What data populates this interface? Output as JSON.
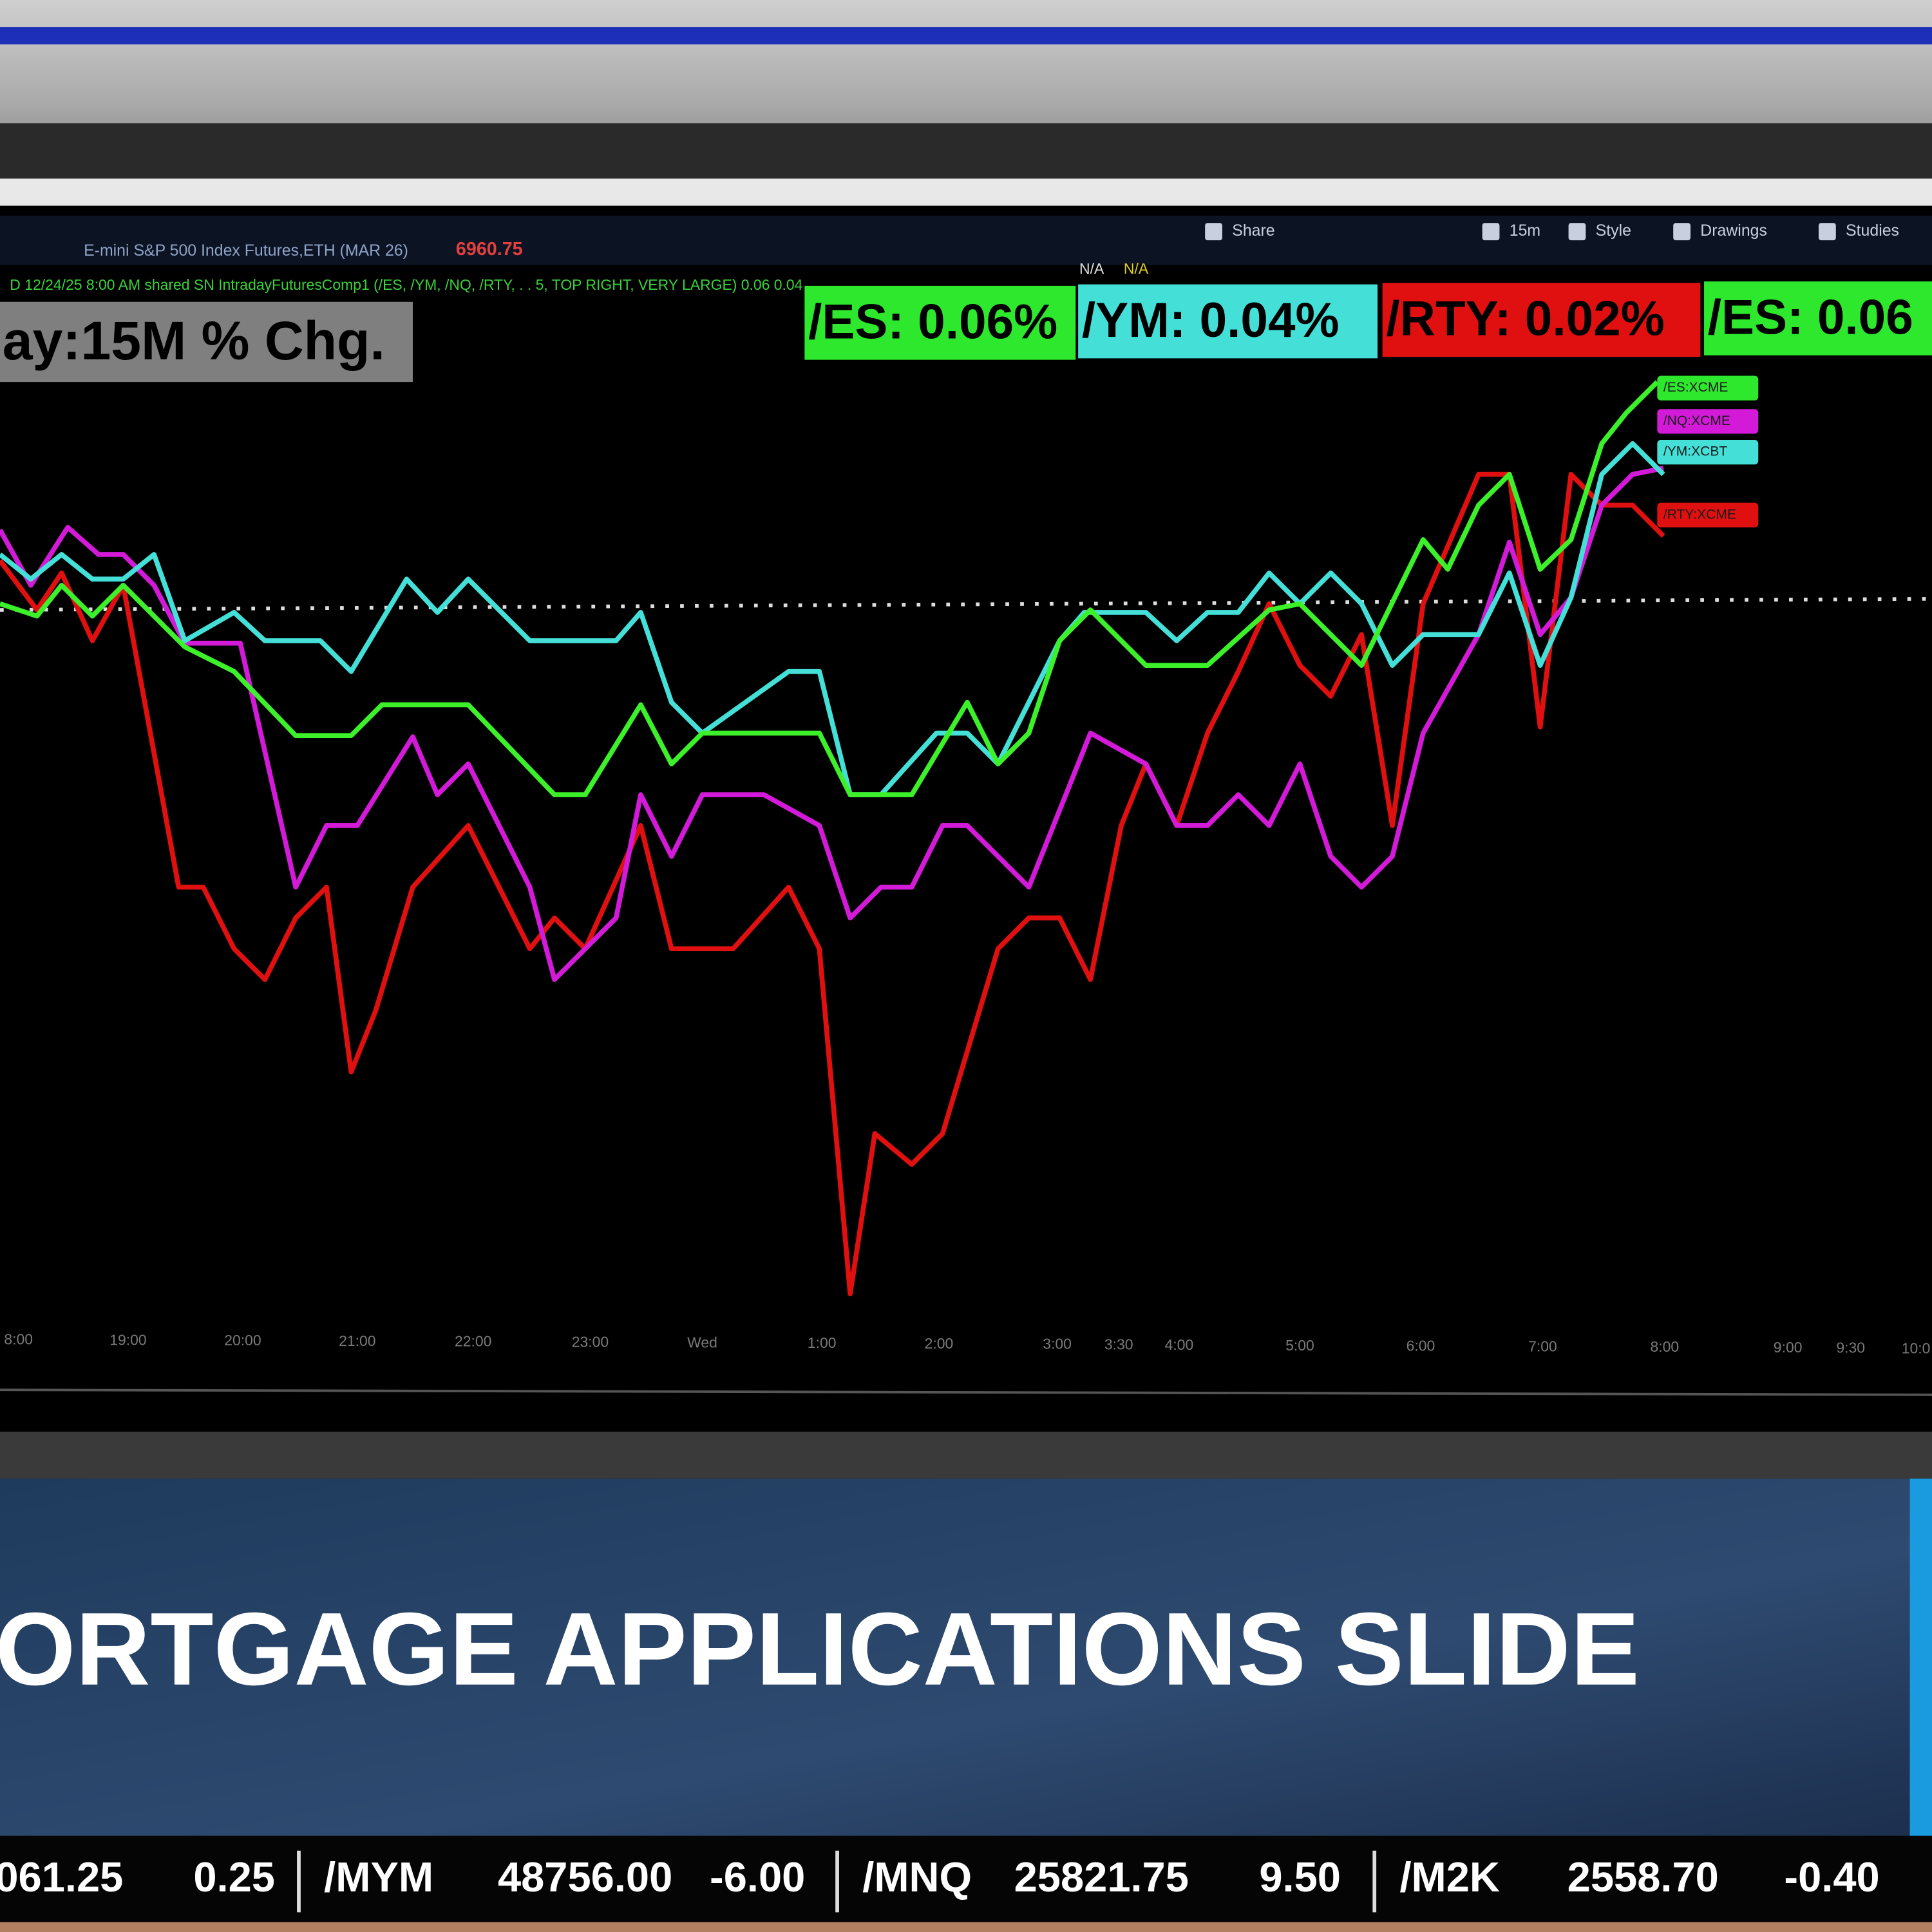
{
  "toolbar": {
    "symbol": "E-mini S&P 500 Index Futures,ETH (MAR 26)",
    "price": "6960.75",
    "buttons": [
      "Share",
      "15m",
      "Style",
      "Drawings",
      "Studies"
    ]
  },
  "study_line": {
    "text": "D 12/24/25 8:00 AM  shared SN IntradayFuturesComp1 (/ES, /YM, /NQ, /RTY, . . 5, TOP RIGHT, VERY LARGE) 0.06  0.04",
    "flags": [
      "N/A",
      "N/A"
    ]
  },
  "chart": {
    "title": "ay:15M % Chg.",
    "badges": [
      "/ES: 0.06%",
      "/YM: 0.04%",
      "/RTY: 0.02%",
      "/ES: 0.06"
    ],
    "line_labels": [
      "/ES:XCME",
      "/NQ:XCME",
      "/YM:XCBT",
      "/RTY:XCME"
    ],
    "time_labels": [
      "8:00",
      "19:00",
      "20:00",
      "21:00",
      "22:00",
      "23:00",
      "Wed",
      "1:00",
      "2:00",
      "3:00",
      "3:30",
      "4:00",
      "5:00",
      "6:00",
      "7:00",
      "8:00",
      "9:00",
      "9:30",
      "10:0"
    ]
  },
  "headline": "ORTGAGE APPLICATIONS SLIDE",
  "ticker": [
    {
      "price": "061.25",
      "change": "0.25"
    },
    {
      "symbol": "/MYM",
      "price": "48756.00",
      "change": "-6.00"
    },
    {
      "symbol": "/MNQ",
      "price": "25821.75",
      "change": "9.50"
    },
    {
      "symbol": "/M2K",
      "price": "2558.70",
      "change": "-0.40"
    }
  ]
}
